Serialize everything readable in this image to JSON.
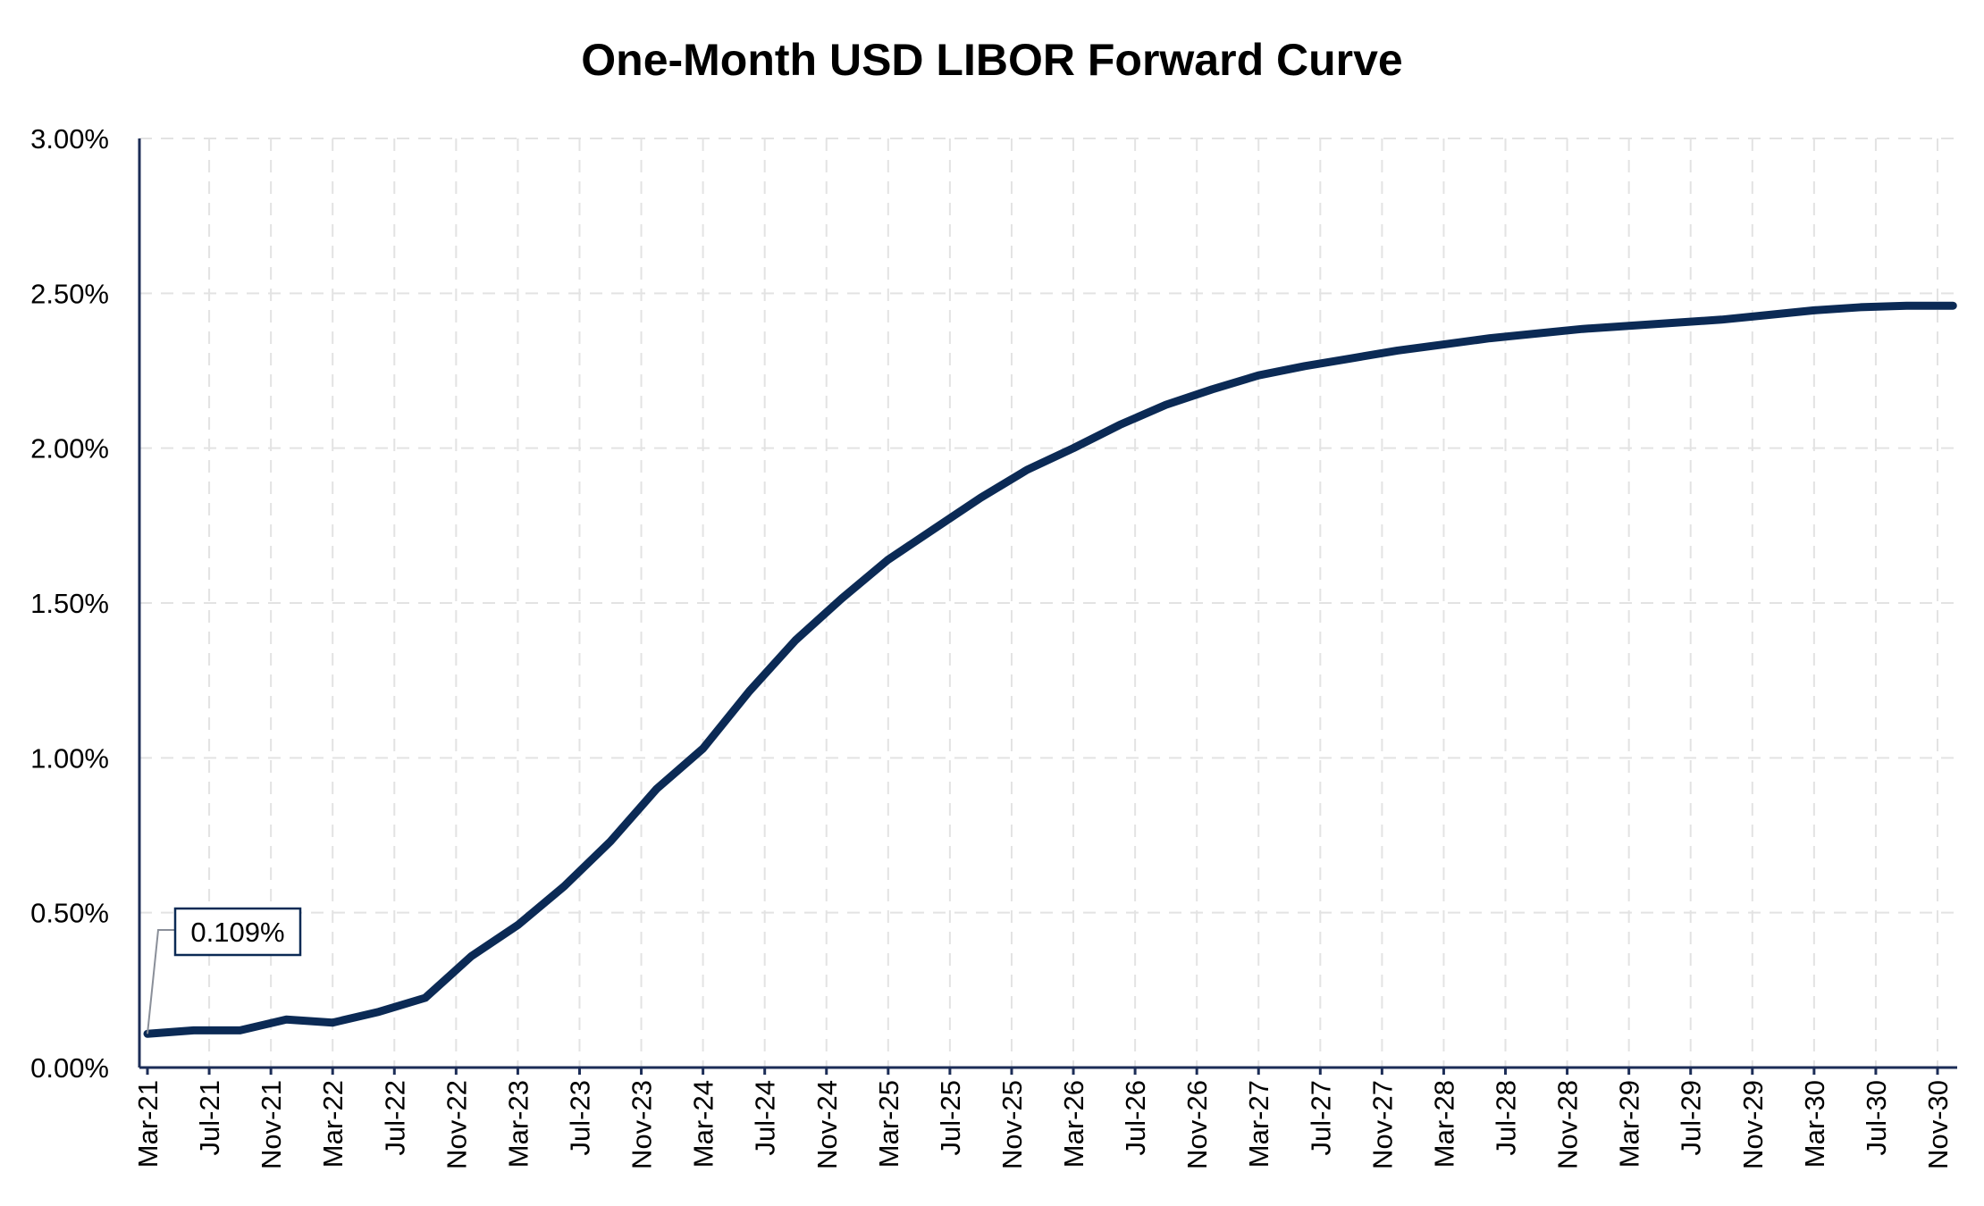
{
  "chart_data": {
    "type": "line",
    "title": "One-Month USD LIBOR Forward Curve",
    "xlabel": "",
    "ylabel": "",
    "ylim": [
      0,
      3.0
    ],
    "y_ticks": [
      "0.00%",
      "0.50%",
      "1.00%",
      "1.50%",
      "2.00%",
      "2.50%",
      "3.00%"
    ],
    "y_tick_values": [
      0,
      0.5,
      1.0,
      1.5,
      2.0,
      2.5,
      3.0
    ],
    "x_tick_labels": [
      "Mar-21",
      "Jul-21",
      "Nov-21",
      "Mar-22",
      "Jul-22",
      "Nov-22",
      "Mar-23",
      "Jul-23",
      "Nov-23",
      "Mar-24",
      "Jul-24",
      "Nov-24",
      "Mar-25",
      "Jul-25",
      "Nov-25",
      "Mar-26",
      "Jul-26",
      "Nov-26",
      "Mar-27",
      "Jul-27",
      "Nov-27",
      "Mar-28",
      "Jul-28",
      "Nov-28",
      "Mar-29",
      "Jul-29",
      "Nov-29",
      "Mar-30",
      "Jul-30",
      "Nov-30"
    ],
    "grid": true,
    "line_color": "#0b2a55",
    "x": [
      "Mar-21",
      "Jun-21",
      "Sep-21",
      "Dec-21",
      "Mar-22",
      "Jun-22",
      "Sep-22",
      "Dec-22",
      "Mar-23",
      "Jun-23",
      "Sep-23",
      "Dec-23",
      "Mar-24",
      "Jun-24",
      "Sep-24",
      "Dec-24",
      "Mar-25",
      "Jun-25",
      "Sep-25",
      "Dec-25",
      "Mar-26",
      "Jun-26",
      "Sep-26",
      "Dec-26",
      "Mar-27",
      "Jun-27",
      "Sep-27",
      "Dec-27",
      "Mar-28",
      "Jun-28",
      "Sep-28",
      "Dec-28",
      "Mar-29",
      "Jun-29",
      "Sep-29",
      "Dec-29",
      "Mar-30",
      "Jun-30",
      "Sep-30",
      "Dec-30"
    ],
    "series": [
      {
        "values": [
          0.109,
          0.12,
          0.12,
          0.155,
          0.145,
          0.18,
          0.225,
          0.36,
          0.46,
          0.585,
          0.73,
          0.9,
          1.03,
          1.215,
          1.38,
          1.515,
          1.64,
          1.74,
          1.84,
          1.93,
          2.0,
          2.075,
          2.14,
          2.19,
          2.235,
          2.265,
          2.29,
          2.315,
          2.335,
          2.355,
          2.37,
          2.385,
          2.395,
          2.405,
          2.415,
          2.43,
          2.445,
          2.455,
          2.46,
          2.46
        ]
      }
    ],
    "annotations": [
      {
        "text": "0.109%",
        "x": "Mar-21",
        "y": 0.109
      }
    ]
  }
}
